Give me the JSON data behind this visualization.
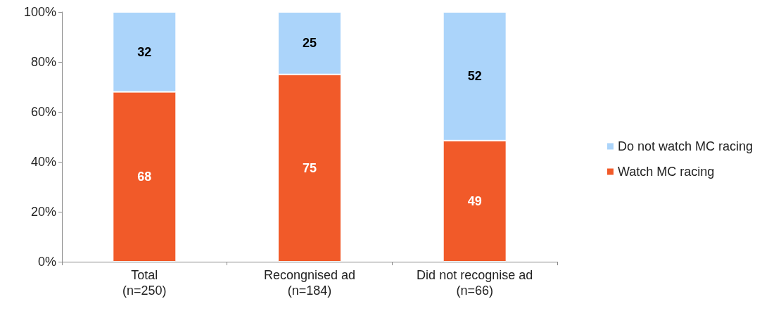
{
  "chart_data": {
    "type": "bar",
    "stacked": true,
    "categories": [
      "Total\n(n=250)",
      "Recongnised ad\n(n=184)",
      "Did not recognise ad\n(n=66)"
    ],
    "series": [
      {
        "name": "Watch MC racing",
        "color": "#f15a29",
        "values": [
          68,
          75,
          48.5
        ],
        "value_labels": [
          "68",
          "75",
          "49"
        ]
      },
      {
        "name": "Do not watch MC racing",
        "color": "#abd4fa",
        "values": [
          32,
          25,
          51.5
        ],
        "value_labels": [
          "32",
          "25",
          "52"
        ]
      }
    ],
    "ylim": [
      0,
      100
    ],
    "yticks": [
      {
        "value": 0,
        "label": "0%"
      },
      {
        "value": 20,
        "label": "20%"
      },
      {
        "value": 40,
        "label": "40%"
      },
      {
        "value": 60,
        "label": "60%"
      },
      {
        "value": 80,
        "label": "80%"
      },
      {
        "value": 100,
        "label": "100%"
      }
    ],
    "grid": false,
    "legend": "right"
  }
}
